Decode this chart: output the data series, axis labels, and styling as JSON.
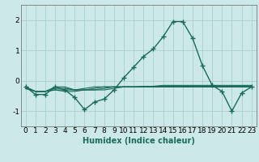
{
  "series": [
    [
      -0.2,
      -0.45,
      -0.45,
      -0.2,
      -0.3,
      -0.55,
      -0.95,
      -0.7,
      -0.6,
      -0.3,
      0.1,
      0.45,
      0.8,
      1.05,
      1.45,
      1.95,
      1.95,
      1.4,
      0.5,
      -0.15,
      -0.35,
      -1.0,
      -0.4,
      -0.2
    ],
    [
      -0.2,
      -0.35,
      -0.35,
      -0.25,
      -0.25,
      -0.3,
      -0.3,
      -0.25,
      -0.2,
      -0.2,
      -0.2,
      -0.2,
      -0.2,
      -0.2,
      -0.2,
      -0.2,
      -0.2,
      -0.2,
      -0.2,
      -0.2,
      -0.2,
      -0.2,
      -0.2,
      -0.2
    ],
    [
      -0.25,
      -0.35,
      -0.35,
      -0.3,
      -0.3,
      -0.3,
      -0.25,
      -0.2,
      -0.2,
      -0.2,
      -0.2,
      -0.2,
      -0.2,
      -0.2,
      -0.2,
      -0.2,
      -0.2,
      -0.2,
      -0.2,
      -0.2,
      -0.2,
      -0.2,
      -0.2,
      -0.2
    ],
    [
      -0.25,
      -0.35,
      -0.35,
      -0.3,
      -0.35,
      -0.35,
      -0.3,
      -0.3,
      -0.25,
      -0.2,
      -0.2,
      -0.2,
      -0.2,
      -0.18,
      -0.18,
      -0.18,
      -0.18,
      -0.18,
      -0.18,
      -0.18,
      -0.18,
      -0.18,
      -0.18,
      -0.18
    ],
    [
      -0.2,
      -0.35,
      -0.35,
      -0.2,
      -0.2,
      -0.3,
      -0.3,
      -0.3,
      -0.3,
      -0.25,
      -0.2,
      -0.2,
      -0.18,
      -0.18,
      -0.15,
      -0.15,
      -0.15,
      -0.15,
      -0.15,
      -0.15,
      -0.15,
      -0.15,
      -0.15,
      -0.15
    ]
  ],
  "x": [
    0,
    1,
    2,
    3,
    4,
    5,
    6,
    7,
    8,
    9,
    10,
    11,
    12,
    13,
    14,
    15,
    16,
    17,
    18,
    19,
    20,
    21,
    22,
    23
  ],
  "line_color": "#1a6b5a",
  "marker": "+",
  "bg_color": "#cce8e8",
  "grid_color": "#aacece",
  "xlabel": "Humidex (Indice chaleur)",
  "ylim": [
    -1.5,
    2.5
  ],
  "xlim": [
    -0.5,
    23.5
  ],
  "yticks": [
    -1,
    0,
    1,
    2
  ],
  "xticks": [
    0,
    1,
    2,
    3,
    4,
    5,
    6,
    7,
    8,
    9,
    10,
    11,
    12,
    13,
    14,
    15,
    16,
    17,
    18,
    19,
    20,
    21,
    22,
    23
  ],
  "label_fontsize": 7,
  "tick_fontsize": 6.5
}
